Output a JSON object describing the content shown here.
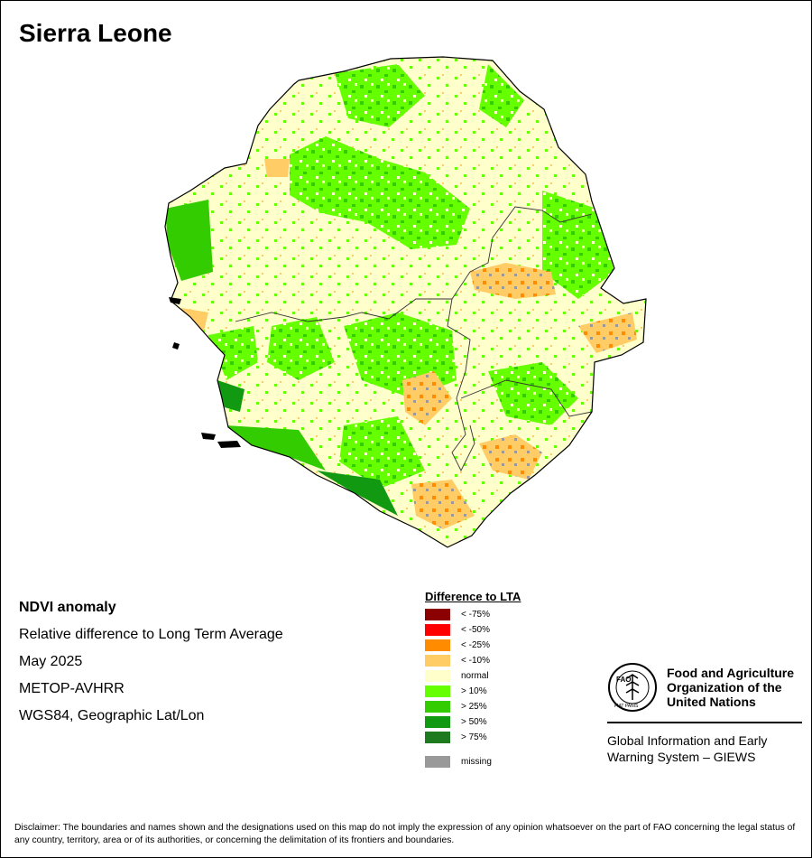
{
  "title": "Sierra Leone",
  "info": {
    "heading": "NDVI anomaly",
    "line1": "Relative difference to Long Term Average",
    "line2": "May 2025",
    "line3": "METOP-AVHRR",
    "line4": "WGS84, Geographic Lat/Lon"
  },
  "legend": {
    "title": "Difference to LTA",
    "items": [
      {
        "label": "< -75%",
        "color": "#8b0000"
      },
      {
        "label": "< -50%",
        "color": "#ff0000"
      },
      {
        "label": "< -25%",
        "color": "#ff8c00"
      },
      {
        "label": "< -10%",
        "color": "#ffcc66"
      },
      {
        "label": "normal",
        "color": "#ffffcc"
      },
      {
        "label": "> 10%",
        "color": "#66ff00"
      },
      {
        "label": "> 25%",
        "color": "#33cc00"
      },
      {
        "label": "> 50%",
        "color": "#119911"
      },
      {
        "label": "> 75%",
        "color": "#1e7a1e"
      }
    ],
    "missing": {
      "label": "missing",
      "color": "#999999"
    }
  },
  "fao": {
    "name_line1": "Food and Agriculture",
    "name_line2": "Organization of the",
    "name_line3": "United Nations",
    "giews_line1": "Global Information and Early",
    "giews_line2": "Warning System – GIEWS",
    "logo_letters": "FAO",
    "logo_motto": "FIAT PANIS"
  },
  "disclaimer": "Disclaimer: The boundaries and names shown and the designations used on this map do not imply the expression of any opinion whatsoever on the part of FAO concerning the legal status of any country, territory, area or of its authorities, or concerning the delimitation of its frontiers and boundaries."
}
